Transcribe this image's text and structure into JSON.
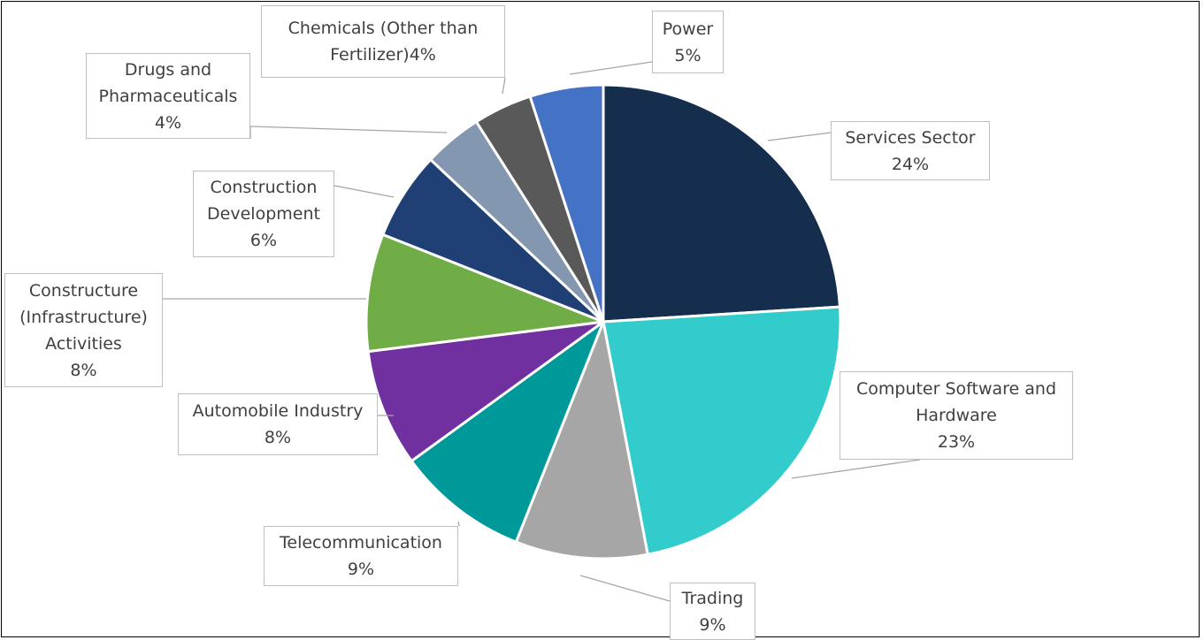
{
  "chart_data": {
    "type": "pie",
    "title": "",
    "slices": [
      {
        "name": "Services Sector",
        "label_lines": [
          "Services Sector",
          "24%"
        ],
        "value": 24,
        "color": "#152e4e"
      },
      {
        "name": "Computer Software and Hardware",
        "label_lines": [
          "Computer Software and",
          "Hardware",
          "23%"
        ],
        "value": 23,
        "color": "#33cccc"
      },
      {
        "name": "Trading",
        "label_lines": [
          "Trading",
          "9%"
        ],
        "value": 9,
        "color": "#a6a6a6"
      },
      {
        "name": "Telecommunication",
        "label_lines": [
          "Telecommunication",
          "9%"
        ],
        "value": 9,
        "color": "#009999"
      },
      {
        "name": "Automobile Industry",
        "label_lines": [
          "Automobile Industry",
          "8%"
        ],
        "value": 8,
        "color": "#7030a0"
      },
      {
        "name": "Constructure (Infrastructure) Activities",
        "label_lines": [
          "Constructure",
          "(Infrastructure)",
          "Activities",
          "8%"
        ],
        "value": 8,
        "color": "#70ad47"
      },
      {
        "name": "Construction Development",
        "label_lines": [
          "Construction",
          "Development",
          "6%"
        ],
        "value": 6,
        "color": "#203f74"
      },
      {
        "name": "Drugs and Pharmaceuticals",
        "label_lines": [
          "Drugs and",
          "Pharmaceuticals",
          "4%"
        ],
        "value": 4,
        "color": "#8497b0"
      },
      {
        "name": "Chemicals (Other than Fertilizer)",
        "label_lines": [
          "Chemicals (Other than",
          "Fertilizer)4%"
        ],
        "value": 4,
        "color": "#595959"
      },
      {
        "name": "Power",
        "label_lines": [
          "Power",
          "5%"
        ],
        "value": 5,
        "color": "#4472c4"
      }
    ]
  }
}
